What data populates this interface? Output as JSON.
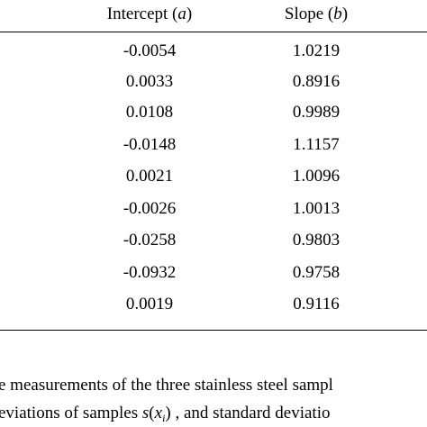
{
  "table": {
    "headers": {
      "intercept": {
        "label": "Intercept (",
        "var": "a",
        "close": ")"
      },
      "slope": {
        "label": "Slope (",
        "var": "b",
        "close": ")"
      }
    },
    "rows": [
      {
        "intercept": "-0.0054",
        "slope": "1.0219"
      },
      {
        "intercept": "0.0033",
        "slope": "0.8916"
      },
      {
        "intercept": "0.0108",
        "slope": "0.9989"
      },
      {
        "intercept": "-0.0148",
        "slope": "1.1157"
      },
      {
        "intercept": "0.0021",
        "slope": "1.0096"
      },
      {
        "intercept": "-0.0026",
        "slope": "1.0013"
      },
      {
        "intercept": "-0.0258",
        "slope": "0.9803"
      },
      {
        "intercept": "-0.0932",
        "slope": "0.9758"
      },
      {
        "intercept": "0.0019",
        "slope": "0.9116"
      }
    ]
  },
  "caption": {
    "line1": "e measurements of the three stainless steel sampl",
    "line2_before": "eviations of samples  ",
    "line2_math_s": "s",
    "line2_math_open": "(",
    "line2_math_x": "x",
    "line2_math_sub": "i",
    "line2_math_close": ")",
    "line2_after": " , and standard deviatio"
  }
}
